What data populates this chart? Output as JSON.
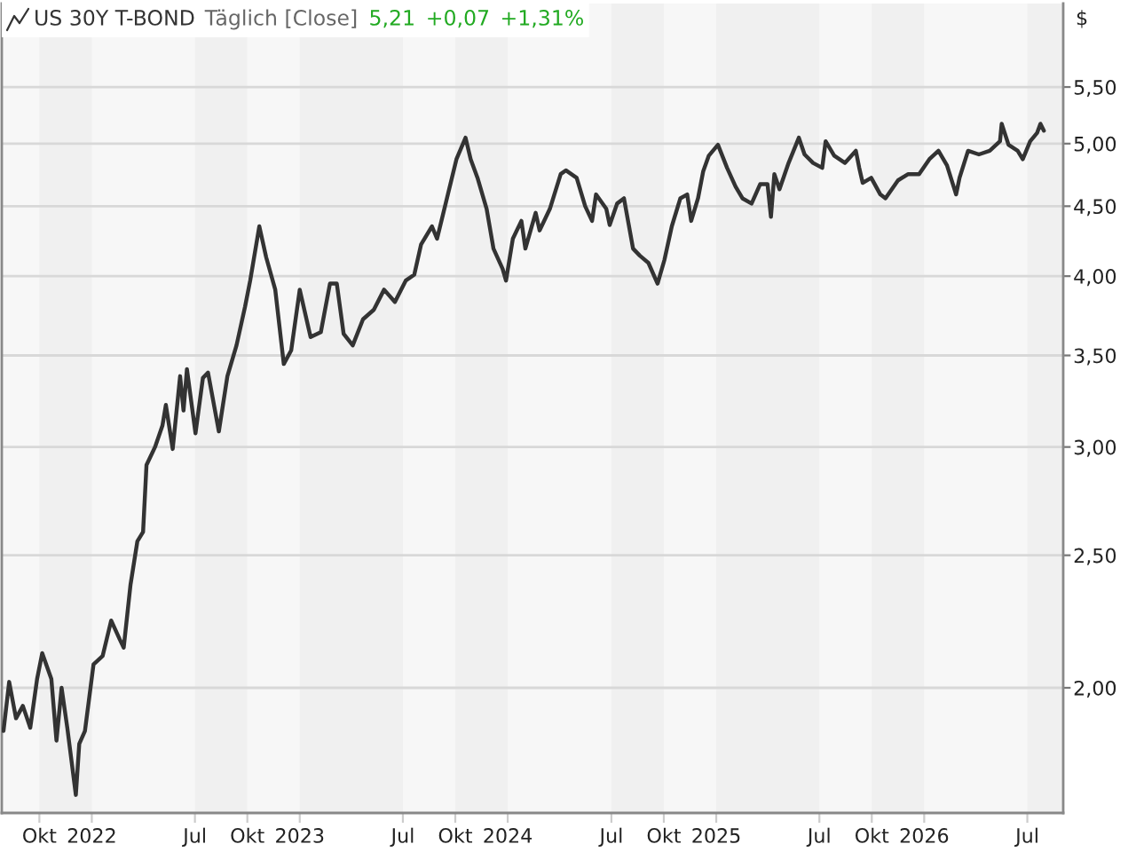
{
  "chart_data": {
    "type": "line",
    "title": "US 30Y T-BOND",
    "subtitle": "Täglich [Close]",
    "annotations": [
      "5,21",
      "+0,07",
      "+1,31%"
    ],
    "ylabel": "$",
    "x": [
      "2021-07-30",
      "2021-08-09",
      "2021-08-21",
      "2021-09-02",
      "2021-09-15",
      "2021-09-27",
      "2021-10-06",
      "2021-10-22",
      "2021-10-31",
      "2021-11-09",
      "2021-11-19",
      "2021-12-04",
      "2021-12-10",
      "2021-12-20",
      "2022-01-04",
      "2022-01-20",
      "2022-02-04",
      "2022-02-19",
      "2022-02-26",
      "2022-03-10",
      "2022-03-22",
      "2022-04-01",
      "2022-04-07",
      "2022-04-22",
      "2022-05-05",
      "2022-05-11",
      "2022-05-23",
      "2022-06-05",
      "2022-06-11",
      "2022-06-17",
      "2022-07-02",
      "2022-07-15",
      "2022-07-24",
      "2022-08-12",
      "2022-08-27",
      "2022-09-12",
      "2022-09-27",
      "2022-10-06",
      "2022-10-22",
      "2022-11-03",
      "2022-11-19",
      "2022-12-04",
      "2022-12-17",
      "2023-01-01",
      "2023-01-20",
      "2023-02-07",
      "2023-02-23",
      "2023-03-07",
      "2023-03-19",
      "2023-04-04",
      "2023-04-22",
      "2023-05-11",
      "2023-05-29",
      "2023-06-17",
      "2023-07-06",
      "2023-07-21",
      "2023-08-02",
      "2023-08-21",
      "2023-08-30",
      "2023-09-18",
      "2023-10-03",
      "2023-10-19",
      "2023-10-28",
      "2023-11-09",
      "2023-11-25",
      "2023-12-07",
      "2023-12-23",
      "2023-12-29",
      "2024-01-10",
      "2024-01-25",
      "2024-02-01",
      "2024-02-19",
      "2024-02-26",
      "2024-03-15",
      "2024-04-03",
      "2024-04-12",
      "2024-05-01",
      "2024-05-16",
      "2024-05-28",
      "2024-06-04",
      "2024-06-22",
      "2024-06-28",
      "2024-07-11",
      "2024-07-23",
      "2024-08-08",
      "2024-08-20",
      "2024-09-04",
      "2024-09-20",
      "2024-10-02",
      "2024-10-15",
      "2024-10-30",
      "2024-11-11",
      "2024-11-18",
      "2024-11-30",
      "2024-12-09",
      "2024-12-19",
      "2025-01-04",
      "2025-01-20",
      "2025-02-04",
      "2025-02-16",
      "2025-03-04",
      "2025-03-19",
      "2025-04-01",
      "2025-04-07",
      "2025-04-13",
      "2025-04-22",
      "2025-05-08",
      "2025-05-26",
      "2025-06-05",
      "2025-06-20",
      "2025-07-06",
      "2025-07-12",
      "2025-07-27",
      "2025-08-15",
      "2025-09-03",
      "2025-09-09",
      "2025-09-15",
      "2025-09-30",
      "2025-10-16",
      "2025-10-25",
      "2025-11-16",
      "2025-12-04",
      "2025-12-23",
      "2026-01-10",
      "2026-01-26",
      "2026-02-10",
      "2026-02-26",
      "2026-03-04",
      "2026-03-19",
      "2026-04-07",
      "2026-04-26",
      "2026-05-14",
      "2026-05-17",
      "2026-05-29",
      "2026-06-14",
      "2026-06-23",
      "2026-07-06",
      "2026-07-18",
      "2026-07-24",
      "2026-07-30"
    ],
    "series": [
      {
        "color": "#333333",
        "values": [
          1.86,
          2.02,
          1.9,
          1.94,
          1.87,
          2.03,
          2.12,
          2.03,
          1.83,
          2.0,
          1.87,
          1.67,
          1.82,
          1.86,
          2.08,
          2.11,
          2.24,
          2.17,
          2.14,
          2.38,
          2.56,
          2.6,
          2.91,
          3.0,
          3.11,
          3.22,
          2.99,
          3.38,
          3.19,
          3.42,
          3.07,
          3.37,
          3.4,
          3.08,
          3.38,
          3.56,
          3.8,
          3.97,
          4.35,
          4.13,
          3.91,
          3.45,
          3.53,
          3.91,
          3.61,
          3.64,
          3.95,
          3.95,
          3.63,
          3.56,
          3.72,
          3.78,
          3.91,
          3.83,
          3.97,
          4.01,
          4.22,
          4.35,
          4.26,
          4.59,
          4.87,
          5.05,
          4.87,
          4.72,
          4.48,
          4.19,
          4.05,
          3.97,
          4.26,
          4.39,
          4.19,
          4.45,
          4.32,
          4.48,
          4.75,
          4.78,
          4.72,
          4.5,
          4.39,
          4.59,
          4.48,
          4.36,
          4.52,
          4.56,
          4.19,
          4.14,
          4.09,
          3.95,
          4.11,
          4.35,
          4.56,
          4.59,
          4.39,
          4.56,
          4.77,
          4.9,
          4.99,
          4.8,
          4.65,
          4.56,
          4.52,
          4.67,
          4.67,
          4.42,
          4.75,
          4.63,
          4.84,
          5.05,
          4.91,
          4.84,
          4.8,
          5.02,
          4.9,
          4.84,
          4.94,
          4.8,
          4.68,
          4.72,
          4.59,
          4.56,
          4.7,
          4.75,
          4.75,
          4.87,
          4.94,
          4.82,
          4.59,
          4.72,
          4.94,
          4.91,
          4.94,
          5.02,
          5.17,
          4.99,
          4.94,
          4.87,
          5.02,
          5.09,
          5.17,
          5.11
        ]
      }
    ],
    "log": true,
    "xlim": [
      "2021-07-27",
      "2026-09-02"
    ],
    "xticks": [
      {
        "value": "2021-10-01",
        "label": "Okt"
      },
      {
        "value": "2022-01-01",
        "label": "2022"
      },
      {
        "value": "2022-07-01",
        "label": "Jul"
      },
      {
        "value": "2022-10-01",
        "label": "Okt"
      },
      {
        "value": "2023-01-01",
        "label": "2023"
      },
      {
        "value": "2023-07-01",
        "label": "Jul"
      },
      {
        "value": "2023-10-01",
        "label": "Okt"
      },
      {
        "value": "2024-01-01",
        "label": "2024"
      },
      {
        "value": "2024-07-01",
        "label": "Jul"
      },
      {
        "value": "2024-10-01",
        "label": "Okt"
      },
      {
        "value": "2025-01-01",
        "label": "2025"
      },
      {
        "value": "2025-07-01",
        "label": "Jul"
      },
      {
        "value": "2025-10-01",
        "label": "Okt"
      },
      {
        "value": "2026-01-01",
        "label": "2026"
      },
      {
        "value": "2026-07-01",
        "label": "Jul"
      }
    ],
    "ylim": [
      1.62,
      6.33
    ],
    "yticks": [
      {
        "value": 2.0,
        "label": "2,00"
      },
      {
        "value": 2.5,
        "label": "2,50"
      },
      {
        "value": 3.0,
        "label": "3,00"
      },
      {
        "value": 3.5,
        "label": "3,50"
      },
      {
        "value": 4.0,
        "label": "4,00"
      },
      {
        "value": 4.5,
        "label": "4,50"
      },
      {
        "value": 5.0,
        "label": "5,00"
      },
      {
        "value": 5.5,
        "label": "5,50"
      }
    ],
    "grid": "y",
    "legend": false,
    "line_style": "solid",
    "marker": "none",
    "bands": [
      {
        "axis": "x",
        "from": "2021-10-01",
        "to": "2022-01-01",
        "color": "#f0f0f0"
      },
      {
        "axis": "x",
        "from": "2022-07-01",
        "to": "2022-10-01",
        "color": "#f0f0f0"
      },
      {
        "axis": "x",
        "from": "2023-01-01",
        "to": "2023-07-01",
        "color": "#f0f0f0"
      },
      {
        "axis": "x",
        "from": "2023-10-01",
        "to": "2024-01-01",
        "color": "#f0f0f0"
      },
      {
        "axis": "x",
        "from": "2024-07-01",
        "to": "2024-10-01",
        "color": "#f0f0f0"
      },
      {
        "axis": "x",
        "from": "2025-01-01",
        "to": "2025-07-01",
        "color": "#f0f0f0"
      },
      {
        "axis": "x",
        "from": "2025-10-01",
        "to": "2026-01-01",
        "color": "#f0f0f0"
      },
      {
        "axis": "x",
        "from": "2026-07-01",
        "to": "2026-09-02",
        "color": "#f0f0f0"
      }
    ]
  }
}
